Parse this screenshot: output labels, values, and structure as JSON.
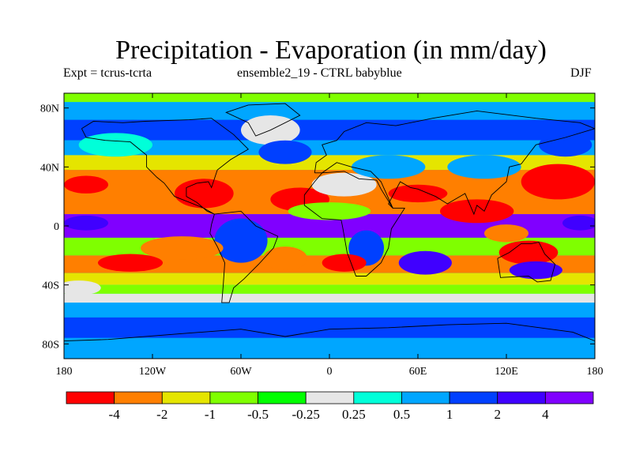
{
  "title": "Precipitation - Evaporation (in mm/day)",
  "subtitle_left": "Expt = tcrus-tcrta",
  "subtitle_center": "ensemble2_19 - CTRL babyblue",
  "subtitle_right": "DJF",
  "lat_ticks": [
    {
      "label": "80N",
      "lat": 80
    },
    {
      "label": "40N",
      "lat": 40
    },
    {
      "label": "0",
      "lat": 0
    },
    {
      "label": "40S",
      "lat": -40
    },
    {
      "label": "80S",
      "lat": -80
    }
  ],
  "lon_ticks": [
    {
      "label": "180",
      "lon": -180
    },
    {
      "label": "120W",
      "lon": -120
    },
    {
      "label": "60W",
      "lon": -60
    },
    {
      "label": "0",
      "lon": 0
    },
    {
      "label": "60E",
      "lon": 60
    },
    {
      "label": "120E",
      "lon": 120
    },
    {
      "label": "180",
      "lon": 180
    }
  ],
  "colorbar": {
    "colors": [
      "#ff0000",
      "#ff7f00",
      "#e5e500",
      "#7fff00",
      "#00ff00",
      "#e6e6e6",
      "#00ffd9",
      "#00a6ff",
      "#0040ff",
      "#4000ff",
      "#8000ff"
    ],
    "labels": [
      "-4",
      "-2",
      "-1",
      "-0.5",
      "-0.25",
      "0.25",
      "0.5",
      "1",
      "2",
      "4"
    ]
  },
  "bands": [
    {
      "lat_from": 90,
      "lat_to": 84,
      "color": "#7fff00"
    },
    {
      "lat_from": 84,
      "lat_to": 72,
      "color": "#00a6ff"
    },
    {
      "lat_from": 72,
      "lat_to": 58,
      "color": "#0040ff"
    },
    {
      "lat_from": 58,
      "lat_to": 48,
      "color": "#00a6ff"
    },
    {
      "lat_from": 48,
      "lat_to": 38,
      "color": "#e5e500"
    },
    {
      "lat_from": 38,
      "lat_to": 8,
      "color": "#ff7f00"
    },
    {
      "lat_from": 8,
      "lat_to": -8,
      "color": "#8000ff"
    },
    {
      "lat_from": -8,
      "lat_to": -20,
      "color": "#7fff00"
    },
    {
      "lat_from": -20,
      "lat_to": -32,
      "color": "#ff7f00"
    },
    {
      "lat_from": -32,
      "lat_to": -40,
      "color": "#e5e500"
    },
    {
      "lat_from": -40,
      "lat_to": -46,
      "color": "#7fff00"
    },
    {
      "lat_from": -46,
      "lat_to": -52,
      "color": "#e6e6e6"
    },
    {
      "lat_from": -52,
      "lat_to": -62,
      "color": "#00a6ff"
    },
    {
      "lat_from": -62,
      "lat_to": -76,
      "color": "#0040ff"
    },
    {
      "lat_from": -76,
      "lat_to": -90,
      "color": "#00a6ff"
    }
  ],
  "blobs": [
    {
      "lon": 155,
      "lat": 30,
      "rx": 25,
      "ry": 12,
      "color": "#ff0000"
    },
    {
      "lon": -85,
      "lat": 22,
      "rx": 20,
      "ry": 10,
      "color": "#ff0000"
    },
    {
      "lon": -20,
      "lat": 18,
      "rx": 20,
      "ry": 8,
      "color": "#ff0000"
    },
    {
      "lon": 60,
      "lat": 22,
      "rx": 20,
      "ry": 6,
      "color": "#ff0000"
    },
    {
      "lon": -165,
      "lat": 28,
      "rx": 15,
      "ry": 6,
      "color": "#ff0000"
    },
    {
      "lon": 10,
      "lat": 28,
      "rx": 22,
      "ry": 8,
      "color": "#e6e6e6"
    },
    {
      "lon": 0,
      "lat": 10,
      "rx": 28,
      "ry": 6,
      "color": "#7fff00"
    },
    {
      "lon": 40,
      "lat": 40,
      "rx": 25,
      "ry": 8,
      "color": "#00a6ff"
    },
    {
      "lon": 105,
      "lat": 40,
      "rx": 25,
      "ry": 8,
      "color": "#00a6ff"
    },
    {
      "lon": -40,
      "lat": 65,
      "rx": 20,
      "ry": 10,
      "color": "#e6e6e6"
    },
    {
      "lon": -145,
      "lat": 55,
      "rx": 25,
      "ry": 8,
      "color": "#00ffd9"
    },
    {
      "lon": 100,
      "lat": 10,
      "rx": 25,
      "ry": 8,
      "color": "#ff0000"
    },
    {
      "lon": 135,
      "lat": -18,
      "rx": 20,
      "ry": 8,
      "color": "#ff0000"
    },
    {
      "lon": -60,
      "lat": -10,
      "rx": 18,
      "ry": 15,
      "color": "#0040ff"
    },
    {
      "lon": 25,
      "lat": -15,
      "rx": 12,
      "ry": 12,
      "color": "#0040ff"
    },
    {
      "lon": 65,
      "lat": -25,
      "rx": 18,
      "ry": 8,
      "color": "#4000ff"
    },
    {
      "lon": 140,
      "lat": -30,
      "rx": 18,
      "ry": 6,
      "color": "#4000ff"
    },
    {
      "lon": -100,
      "lat": -15,
      "rx": 28,
      "ry": 8,
      "color": "#ff7f00"
    },
    {
      "lon": -135,
      "lat": -25,
      "rx": 22,
      "ry": 6,
      "color": "#ff0000"
    },
    {
      "lon": -30,
      "lat": -22,
      "rx": 15,
      "ry": 8,
      "color": "#ff7f00"
    },
    {
      "lon": 10,
      "lat": -25,
      "rx": 15,
      "ry": 6,
      "color": "#ff0000"
    },
    {
      "lon": -165,
      "lat": 2,
      "rx": 15,
      "ry": 5,
      "color": "#4000ff"
    },
    {
      "lon": 170,
      "lat": 2,
      "rx": 12,
      "ry": 5,
      "color": "#4000ff"
    },
    {
      "lon": 120,
      "lat": -5,
      "rx": 15,
      "ry": 6,
      "color": "#ff7f00"
    },
    {
      "lon": -30,
      "lat": 50,
      "rx": 18,
      "ry": 8,
      "color": "#0040ff"
    },
    {
      "lon": 160,
      "lat": 55,
      "rx": 18,
      "ry": 8,
      "color": "#0040ff"
    },
    {
      "lon": -170,
      "lat": -42,
      "rx": 15,
      "ry": 5,
      "color": "#e6e6e6"
    }
  ],
  "continents": [
    {
      "name": "north-america",
      "pts": [
        [
          -168,
          66
        ],
        [
          -160,
          71
        ],
        [
          -140,
          70
        ],
        [
          -125,
          71
        ],
        [
          -95,
          72
        ],
        [
          -80,
          73
        ],
        [
          -65,
          62
        ],
        [
          -55,
          52
        ],
        [
          -67,
          45
        ],
        [
          -76,
          38
        ],
        [
          -80,
          26
        ],
        [
          -82,
          30
        ],
        [
          -90,
          29
        ],
        [
          -97,
          26
        ],
        [
          -97,
          20
        ],
        [
          -90,
          16
        ],
        [
          -83,
          10
        ],
        [
          -78,
          8
        ],
        [
          -85,
          12
        ],
        [
          -95,
          16
        ],
        [
          -105,
          20
        ],
        [
          -112,
          29
        ],
        [
          -117,
          33
        ],
        [
          -124,
          40
        ],
        [
          -124,
          48
        ],
        [
          -135,
          57
        ],
        [
          -152,
          58
        ],
        [
          -165,
          60
        ]
      ]
    },
    {
      "name": "greenland",
      "pts": [
        [
          -55,
          82
        ],
        [
          -30,
          83
        ],
        [
          -20,
          75
        ],
        [
          -40,
          65
        ],
        [
          -50,
          61
        ],
        [
          -55,
          70
        ],
        [
          -70,
          77
        ]
      ]
    },
    {
      "name": "south-america",
      "pts": [
        [
          -78,
          8
        ],
        [
          -60,
          10
        ],
        [
          -50,
          0
        ],
        [
          -35,
          -7
        ],
        [
          -38,
          -15
        ],
        [
          -48,
          -26
        ],
        [
          -58,
          -36
        ],
        [
          -65,
          -42
        ],
        [
          -68,
          -52
        ],
        [
          -73,
          -52
        ],
        [
          -72,
          -40
        ],
        [
          -71,
          -25
        ],
        [
          -76,
          -14
        ],
        [
          -81,
          -5
        ],
        [
          -80,
          1
        ]
      ]
    },
    {
      "name": "africa",
      "pts": [
        [
          -17,
          21
        ],
        [
          -10,
          30
        ],
        [
          -5,
          36
        ],
        [
          10,
          37
        ],
        [
          20,
          32
        ],
        [
          32,
          31
        ],
        [
          35,
          25
        ],
        [
          43,
          12
        ],
        [
          51,
          12
        ],
        [
          42,
          -2
        ],
        [
          40,
          -15
        ],
        [
          35,
          -25
        ],
        [
          25,
          -34
        ],
        [
          18,
          -34
        ],
        [
          12,
          -18
        ],
        [
          9,
          -1
        ],
        [
          8,
          4
        ],
        [
          -5,
          5
        ],
        [
          -17,
          14
        ]
      ]
    },
    {
      "name": "eurasia",
      "pts": [
        [
          -10,
          36
        ],
        [
          -9,
          43
        ],
        [
          -2,
          48
        ],
        [
          -5,
          55
        ],
        [
          5,
          58
        ],
        [
          10,
          64
        ],
        [
          25,
          70
        ],
        [
          45,
          68
        ],
        [
          70,
          73
        ],
        [
          100,
          78
        ],
        [
          140,
          73
        ],
        [
          170,
          70
        ],
        [
          180,
          66
        ],
        [
          160,
          60
        ],
        [
          140,
          55
        ],
        [
          130,
          42
        ],
        [
          122,
          40
        ],
        [
          120,
          30
        ],
        [
          110,
          21
        ],
        [
          105,
          10
        ],
        [
          100,
          14
        ],
        [
          98,
          8
        ],
        [
          92,
          22
        ],
        [
          80,
          15
        ],
        [
          72,
          20
        ],
        [
          60,
          25
        ],
        [
          55,
          26
        ],
        [
          48,
          30
        ],
        [
          40,
          15
        ],
        [
          43,
          12
        ],
        [
          35,
          30
        ],
        [
          28,
          37
        ],
        [
          15,
          40
        ],
        [
          5,
          43
        ],
        [
          -5,
          36
        ]
      ]
    },
    {
      "name": "australia",
      "pts": [
        [
          114,
          -22
        ],
        [
          122,
          -18
        ],
        [
          130,
          -12
        ],
        [
          137,
          -12
        ],
        [
          142,
          -11
        ],
        [
          146,
          -19
        ],
        [
          153,
          -26
        ],
        [
          150,
          -37
        ],
        [
          141,
          -38
        ],
        [
          135,
          -34
        ],
        [
          116,
          -35
        ]
      ]
    },
    {
      "name": "antarctica",
      "pts": [
        [
          -180,
          -78
        ],
        [
          -150,
          -77
        ],
        [
          -100,
          -73
        ],
        [
          -60,
          -70
        ],
        [
          -30,
          -75
        ],
        [
          0,
          -70
        ],
        [
          40,
          -69
        ],
        [
          80,
          -67
        ],
        [
          120,
          -66
        ],
        [
          165,
          -72
        ],
        [
          180,
          -78
        ]
      ]
    }
  ]
}
